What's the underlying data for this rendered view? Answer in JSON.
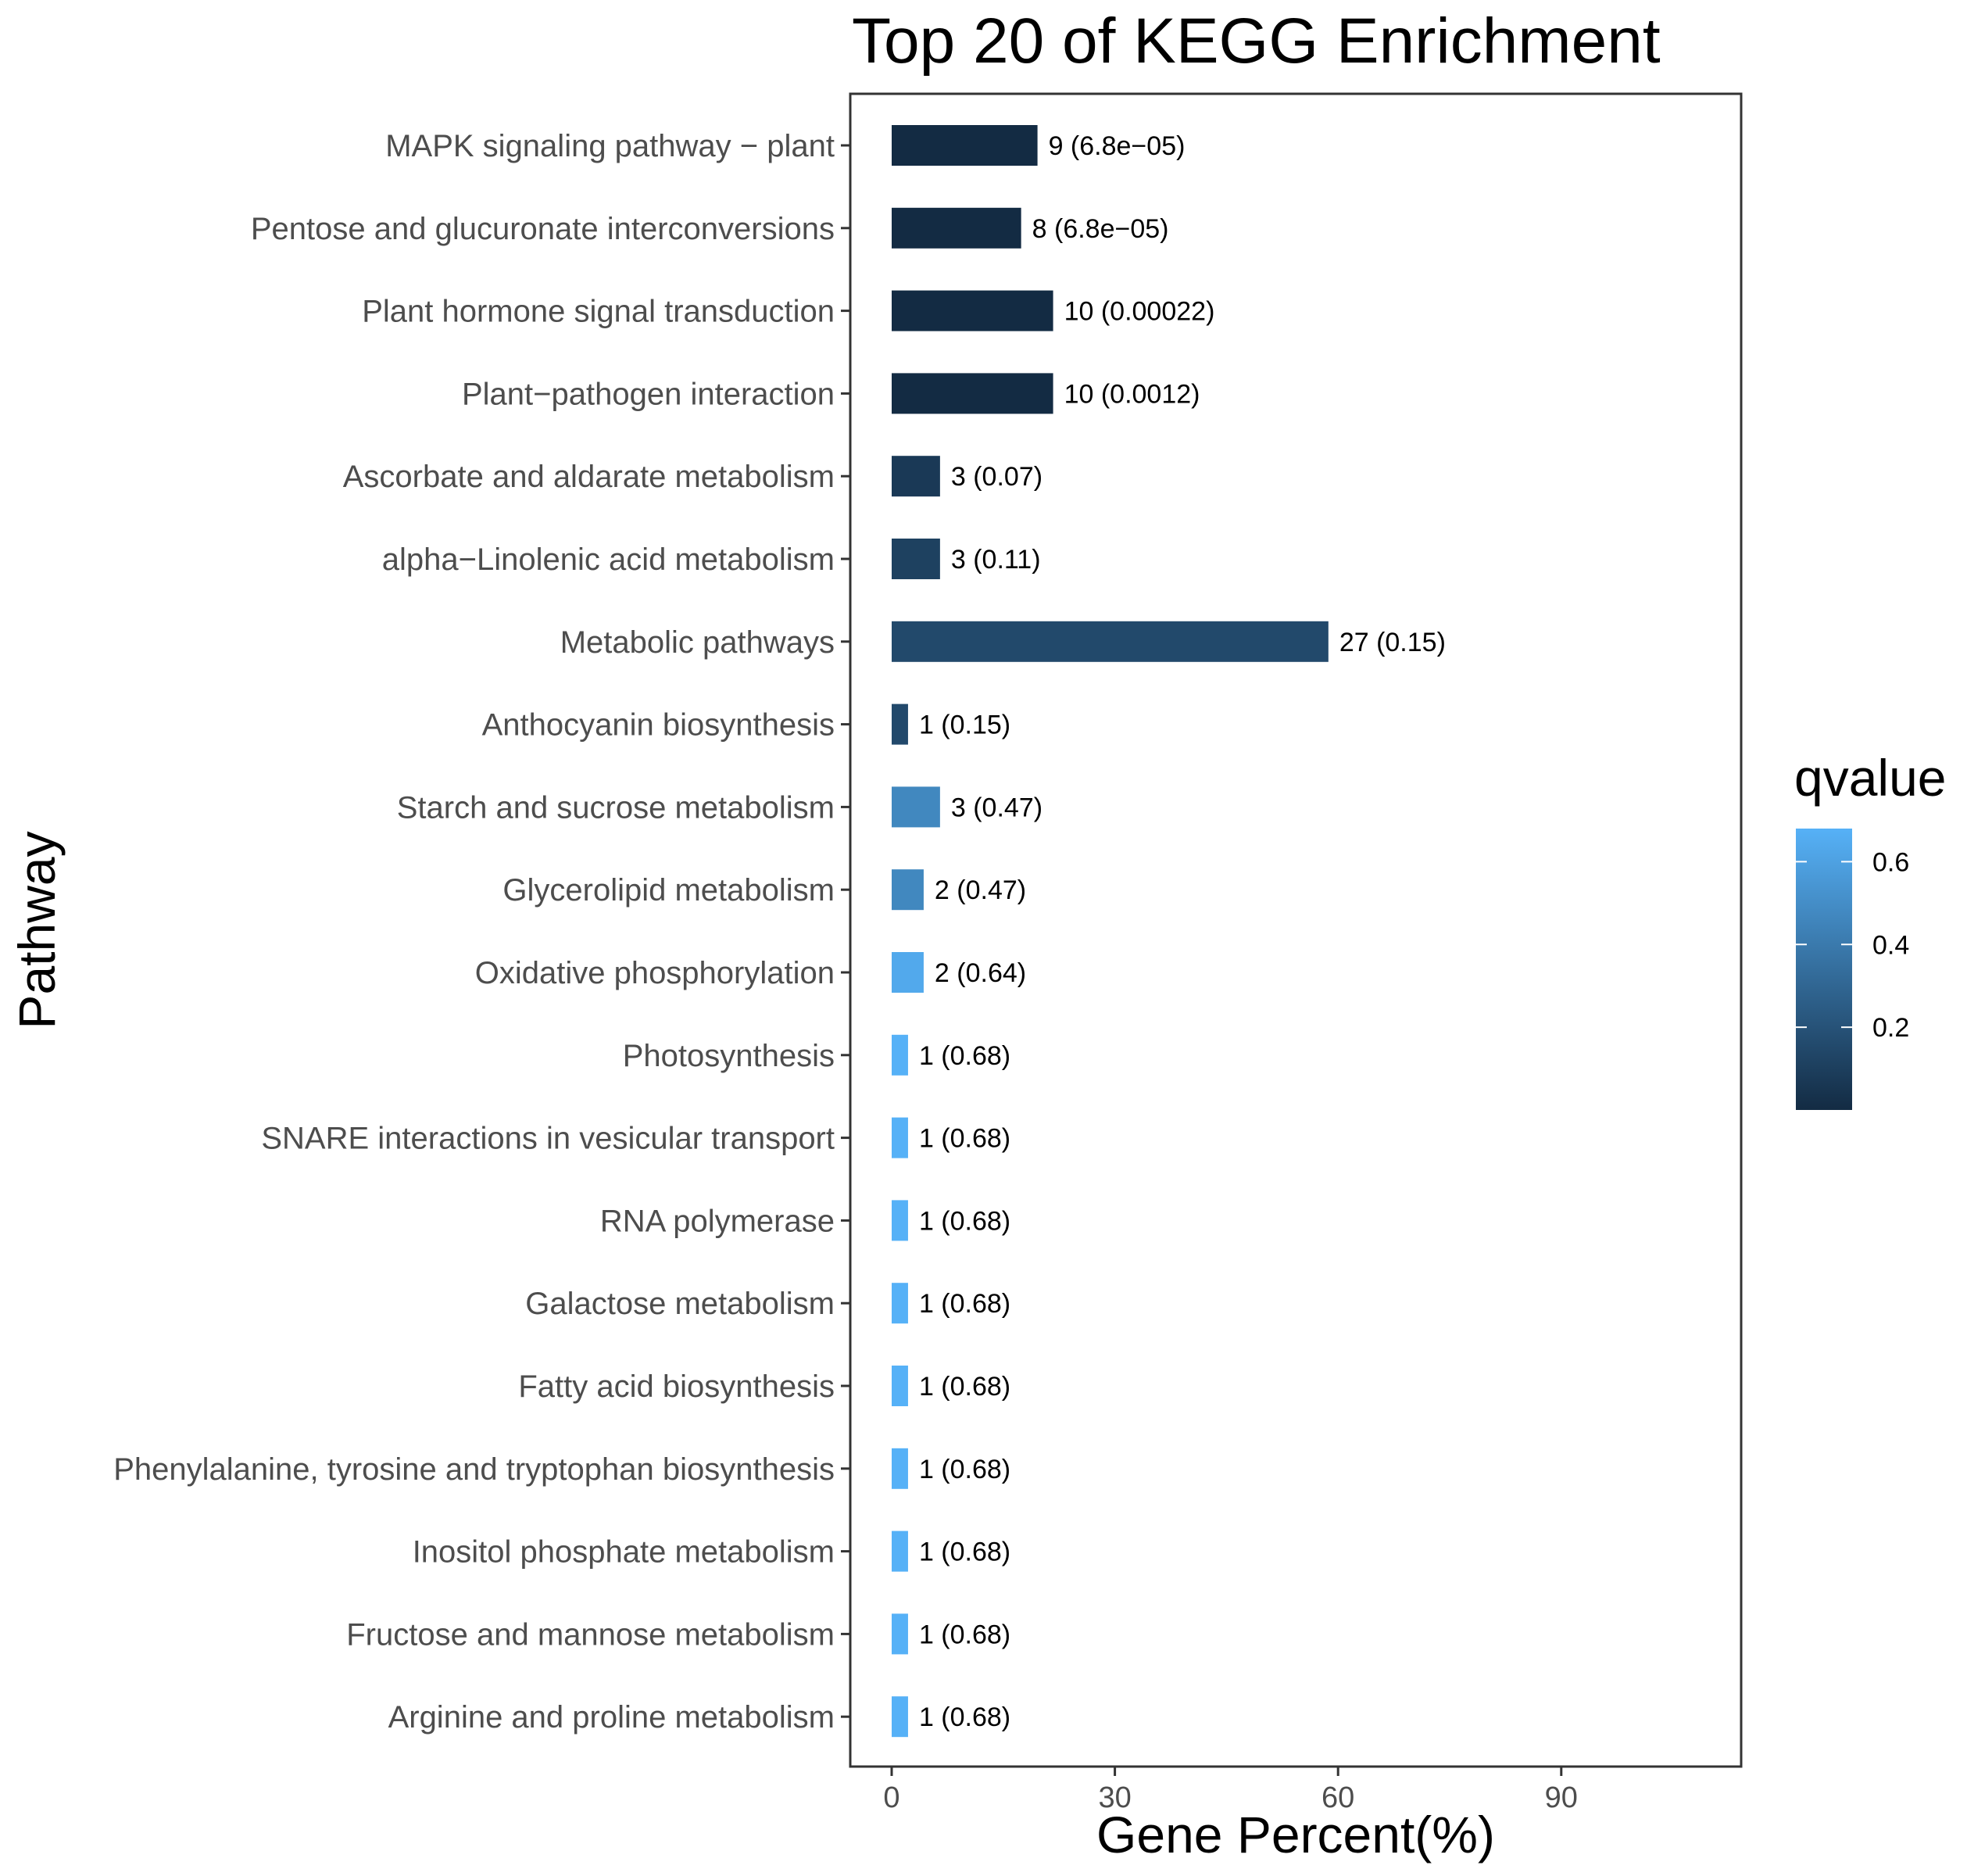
{
  "chart_data": {
    "type": "bar",
    "orientation": "horizontal",
    "title": "Top 20 of KEGG Enrichment",
    "xlabel": "Gene Percent(%)",
    "ylabel": "Pathway",
    "xlim": [
      -5,
      114.5
    ],
    "xticks": [
      "0",
      "30",
      "60",
      "90"
    ],
    "xtick_values": [
      0,
      30,
      60,
      90
    ],
    "grid": false,
    "categories": [
      "MAPK signaling pathway − plant",
      "Pentose and glucuronate interconversions",
      "Plant hormone signal transduction",
      "Plant−pathogen interaction",
      "Ascorbate and aldarate metabolism",
      "alpha−Linolenic acid metabolism",
      "Metabolic pathways",
      "Anthocyanin biosynthesis",
      "Starch and sucrose metabolism",
      "Glycerolipid metabolism",
      "Oxidative phosphorylation",
      "Photosynthesis",
      "SNARE interactions in vesicular transport",
      "RNA polymerase",
      "Galactose metabolism",
      "Fatty acid biosynthesis",
      "Phenylalanine, tyrosine and tryptophan biosynthesis",
      "Inositol phosphate metabolism",
      "Fructose and mannose metabolism",
      "Arginine and proline metabolism"
    ],
    "values": [
      19.6,
      17.4,
      21.7,
      21.7,
      6.5,
      6.5,
      58.7,
      2.2,
      6.5,
      4.3,
      4.3,
      2.2,
      2.2,
      2.2,
      2.2,
      2.2,
      2.2,
      2.2,
      2.2,
      2.2
    ],
    "qvalues": [
      6.8e-05,
      6.8e-05,
      0.00022,
      0.0012,
      0.07,
      0.11,
      0.15,
      0.15,
      0.47,
      0.47,
      0.64,
      0.68,
      0.68,
      0.68,
      0.68,
      0.68,
      0.68,
      0.68,
      0.68,
      0.68
    ],
    "bar_labels": [
      "9 (6.8e−05)",
      "8 (6.8e−05)",
      "10 (0.00022)",
      "10 (0.0012)",
      "3 (0.07)",
      "3 (0.11)",
      "27 (0.15)",
      "1 (0.15)",
      "3 (0.47)",
      "2 (0.47)",
      "2 (0.64)",
      "1 (0.68)",
      "1 (0.68)",
      "1 (0.68)",
      "1 (0.68)",
      "1 (0.68)",
      "1 (0.68)",
      "1 (0.68)",
      "1 (0.68)",
      "1 (0.68)"
    ],
    "legend": {
      "title": "qvalue",
      "position": "right",
      "ticks": [
        "0.2",
        "0.4",
        "0.6"
      ],
      "tick_values": [
        0.2,
        0.4,
        0.6
      ],
      "range": [
        6.8e-05,
        0.68
      ],
      "color_low": "#132b43",
      "color_high": "#56b1f7"
    }
  }
}
